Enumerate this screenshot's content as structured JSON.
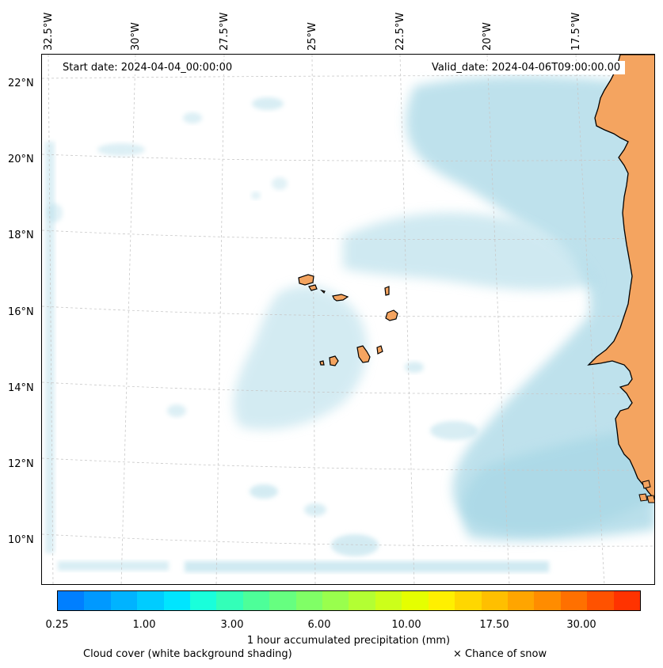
{
  "map": {
    "start_date": "Start date: 2024-04-04_00:00:00",
    "valid_date": "Valid_date: 2024-04-06T09:00:00.00",
    "lon_labels": [
      "32.5°W",
      "30°W",
      "27.5°W",
      "25°W",
      "22.5°W",
      "20°W",
      "17.5°W"
    ],
    "lat_labels": [
      "22°N",
      "20°N",
      "18°N",
      "16°N",
      "14°N",
      "12°N",
      "10°N"
    ],
    "region": "Cape Verde and West African coast",
    "colors": {
      "cloud": "#a9d8e6",
      "land": "#f4a460",
      "coast": "#000000",
      "grid": "#c8c8c8"
    }
  },
  "colorbar": {
    "label": "1 hour accumulated precipitation (mm)",
    "tick_labels": [
      "0.25",
      "1.00",
      "3.00",
      "6.00",
      "10.00",
      "17.50",
      "30.00"
    ],
    "colors": [
      "#007fff",
      "#0099ff",
      "#00b3ff",
      "#00ccff",
      "#00e5ff",
      "#19ffdb",
      "#33ffb8",
      "#4dff99",
      "#66ff80",
      "#80ff66",
      "#99ff4d",
      "#b3ff33",
      "#ccff1a",
      "#e5ff00",
      "#fff000",
      "#ffd700",
      "#ffbf00",
      "#ffa500",
      "#ff8c00",
      "#ff7000",
      "#ff5200",
      "#ff3300"
    ]
  },
  "legend": {
    "cloud_cover": "Cloud cover (white background shading)",
    "snow": "× Chance of snow"
  }
}
